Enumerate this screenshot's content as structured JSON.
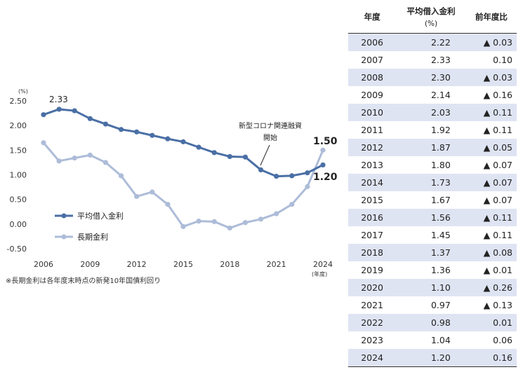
{
  "chart_data": {
    "type": "line",
    "x": [
      2006,
      2007,
      2008,
      2009,
      2010,
      2011,
      2012,
      2013,
      2014,
      2015,
      2016,
      2017,
      2018,
      2019,
      2020,
      2021,
      2022,
      2023,
      2024
    ],
    "series": [
      {
        "name": "平均借入金利",
        "color": "#4a6fa5",
        "values": [
          2.22,
          2.33,
          2.3,
          2.14,
          2.03,
          1.92,
          1.87,
          1.8,
          1.73,
          1.67,
          1.56,
          1.45,
          1.37,
          1.36,
          1.1,
          0.97,
          0.98,
          1.04,
          1.2
        ]
      },
      {
        "name": "長期金利",
        "color": "#adbcd8",
        "values": [
          1.65,
          1.28,
          1.34,
          1.4,
          1.25,
          0.98,
          0.56,
          0.65,
          0.4,
          -0.05,
          0.06,
          0.05,
          -0.08,
          0.03,
          0.1,
          0.21,
          0.4,
          0.76,
          1.5
        ]
      }
    ],
    "ylim": [
      -0.5,
      2.5
    ],
    "yticks": [
      "2.50",
      "2.00",
      "1.50",
      "1.00",
      "0.50",
      "0.00",
      "-0.50"
    ],
    "xticks": [
      "2006",
      "2009",
      "2012",
      "2015",
      "2018",
      "2021",
      "2024"
    ],
    "y_unit": "(%)",
    "x_unit": "(年度)",
    "data_labels": {
      "peak": "2.33",
      "end_long": "1.50",
      "end_avg": "1.20"
    },
    "annotation": {
      "line1": "新型コロナ関連融資",
      "line2": "開始",
      "x": 2020
    },
    "grid": false,
    "legend_position": "bottom-left"
  },
  "footnote": "※長期金利は各年度末時点の新発10年国債利回り",
  "table": {
    "headers": {
      "year": "年度",
      "rate": "平均借入金利",
      "rate_unit": "(%)",
      "diff": "前年度比"
    },
    "rows": [
      {
        "year": "2006",
        "rate": "2.22",
        "diff": "▲ 0.03"
      },
      {
        "year": "2007",
        "rate": "2.33",
        "diff": "0.10"
      },
      {
        "year": "2008",
        "rate": "2.30",
        "diff": "▲ 0.03"
      },
      {
        "year": "2009",
        "rate": "2.14",
        "diff": "▲ 0.16"
      },
      {
        "year": "2010",
        "rate": "2.03",
        "diff": "▲ 0.11"
      },
      {
        "year": "2011",
        "rate": "1.92",
        "diff": "▲ 0.11"
      },
      {
        "year": "2012",
        "rate": "1.87",
        "diff": "▲ 0.05"
      },
      {
        "year": "2013",
        "rate": "1.80",
        "diff": "▲ 0.07"
      },
      {
        "year": "2014",
        "rate": "1.73",
        "diff": "▲ 0.07"
      },
      {
        "year": "2015",
        "rate": "1.67",
        "diff": "▲ 0.07"
      },
      {
        "year": "2016",
        "rate": "1.56",
        "diff": "▲ 0.11"
      },
      {
        "year": "2017",
        "rate": "1.45",
        "diff": "▲ 0.11"
      },
      {
        "year": "2018",
        "rate": "1.37",
        "diff": "▲ 0.08"
      },
      {
        "year": "2019",
        "rate": "1.36",
        "diff": "▲ 0.01"
      },
      {
        "year": "2020",
        "rate": "1.10",
        "diff": "▲ 0.26"
      },
      {
        "year": "2021",
        "rate": "0.97",
        "diff": "▲ 0.13"
      },
      {
        "year": "2022",
        "rate": "0.98",
        "diff": "0.01"
      },
      {
        "year": "2023",
        "rate": "1.04",
        "diff": "0.06"
      },
      {
        "year": "2024",
        "rate": "1.20",
        "diff": "0.16"
      }
    ]
  }
}
